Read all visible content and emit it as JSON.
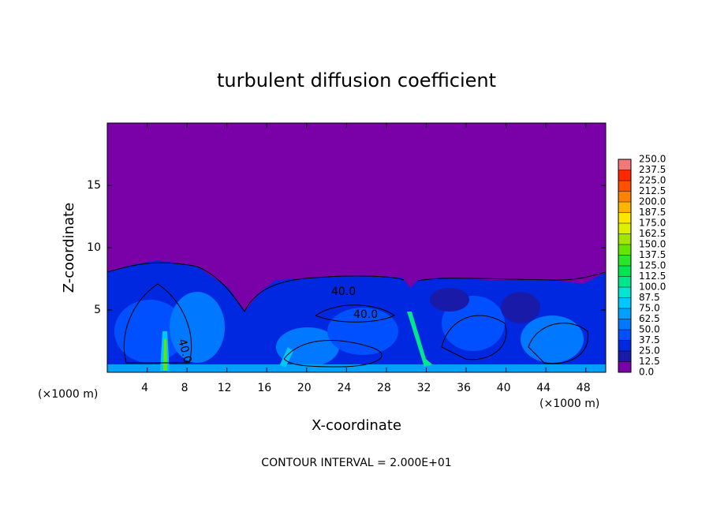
{
  "chart_data": {
    "type": "contour",
    "title": "turbulent diffusion coefficient",
    "x_label": "X-coordinate",
    "y_label": "Z-coordinate",
    "x_unit": "(×1000 m)",
    "footer": "CONTOUR INTERVAL = 2.000E+01",
    "xlim": [
      0,
      50
    ],
    "ylim": [
      0,
      20
    ],
    "xticks": [
      4,
      8,
      12,
      16,
      20,
      24,
      28,
      32,
      36,
      40,
      44,
      48
    ],
    "yticks": [
      5,
      10,
      15
    ],
    "contour_labels": [
      "40.0",
      "40.0",
      "40.0"
    ],
    "colorbar": {
      "levels": [
        {
          "value": 0,
          "label": "0.0"
        },
        {
          "value": 12.5,
          "label": "12.5"
        },
        {
          "value": 25,
          "label": "25.0"
        },
        {
          "value": 37.5,
          "label": "37.5"
        },
        {
          "value": 50,
          "label": "50.0"
        },
        {
          "value": 62.5,
          "label": "62.5"
        },
        {
          "value": 75,
          "label": "75.0"
        },
        {
          "value": 87.5,
          "label": "87.5"
        },
        {
          "value": 100,
          "label": "100.0"
        },
        {
          "value": 112.5,
          "label": "112.5"
        },
        {
          "value": 125,
          "label": "125.0"
        },
        {
          "value": 137.5,
          "label": "137.5"
        },
        {
          "value": 150,
          "label": "150.0"
        },
        {
          "value": 162.5,
          "label": "162.5"
        },
        {
          "value": 175,
          "label": "175.0"
        },
        {
          "value": 187.5,
          "label": "187.5"
        },
        {
          "value": 200,
          "label": "200.0"
        },
        {
          "value": 212.5,
          "label": "212.5"
        },
        {
          "value": 225,
          "label": "225.0"
        },
        {
          "value": 237.5,
          "label": "237.5"
        },
        {
          "value": 250,
          "label": "250.0"
        }
      ],
      "colors": [
        "#7a00a8",
        "#1a1aa8",
        "#0028e0",
        "#0050ff",
        "#0078ff",
        "#00a0ff",
        "#00c8ff",
        "#00e6d2",
        "#00e68c",
        "#00e650",
        "#28e628",
        "#64e600",
        "#a0e600",
        "#dcf000",
        "#ffe600",
        "#ffb400",
        "#ff8200",
        "#ff5000",
        "#ff2800",
        "#f07878"
      ]
    }
  }
}
